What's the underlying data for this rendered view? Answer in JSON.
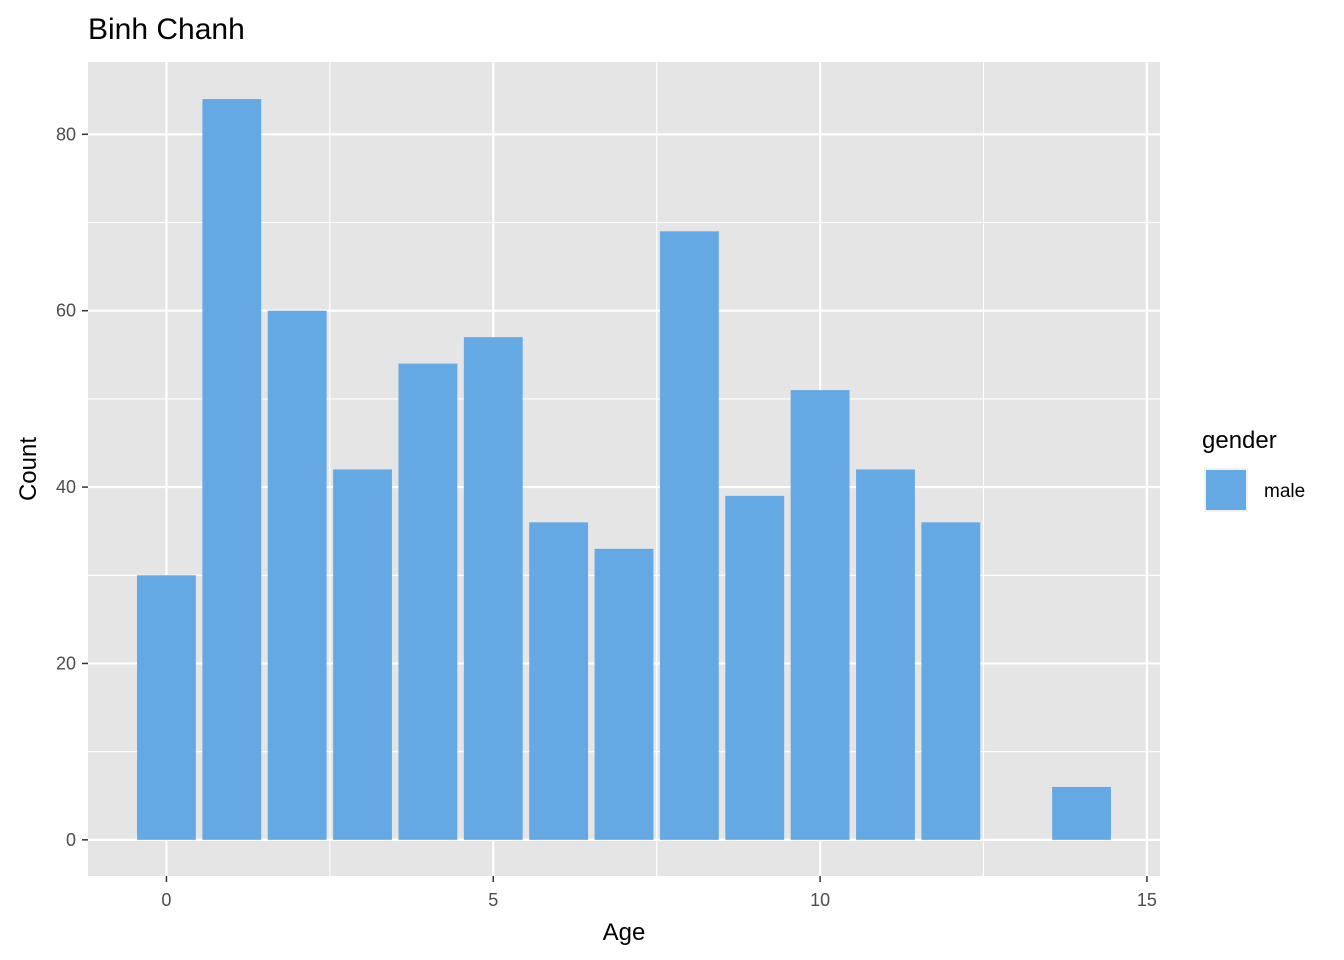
{
  "chart_data": {
    "type": "bar",
    "title": "Binh Chanh",
    "xlabel": "Age",
    "ylabel": "Count",
    "x": [
      0,
      1,
      2,
      3,
      4,
      5,
      6,
      7,
      8,
      9,
      10,
      11,
      12,
      14
    ],
    "series": [
      {
        "name": "male",
        "color": "#64a9e3",
        "values": [
          30,
          84,
          60,
          42,
          54,
          57,
          36,
          33,
          69,
          39,
          51,
          42,
          36,
          6
        ]
      }
    ],
    "xlim": [
      -1.2,
      15.2
    ],
    "ylim": [
      -4.1,
      88.2
    ],
    "x_ticks": [
      0,
      5,
      10,
      15
    ],
    "y_ticks": [
      0,
      20,
      40,
      60,
      80
    ],
    "grid": true,
    "panel_background": "#e5e5e5",
    "grid_color": "#ffffff",
    "legend": {
      "title": "gender",
      "position": "right",
      "entries": [
        "male"
      ]
    }
  }
}
